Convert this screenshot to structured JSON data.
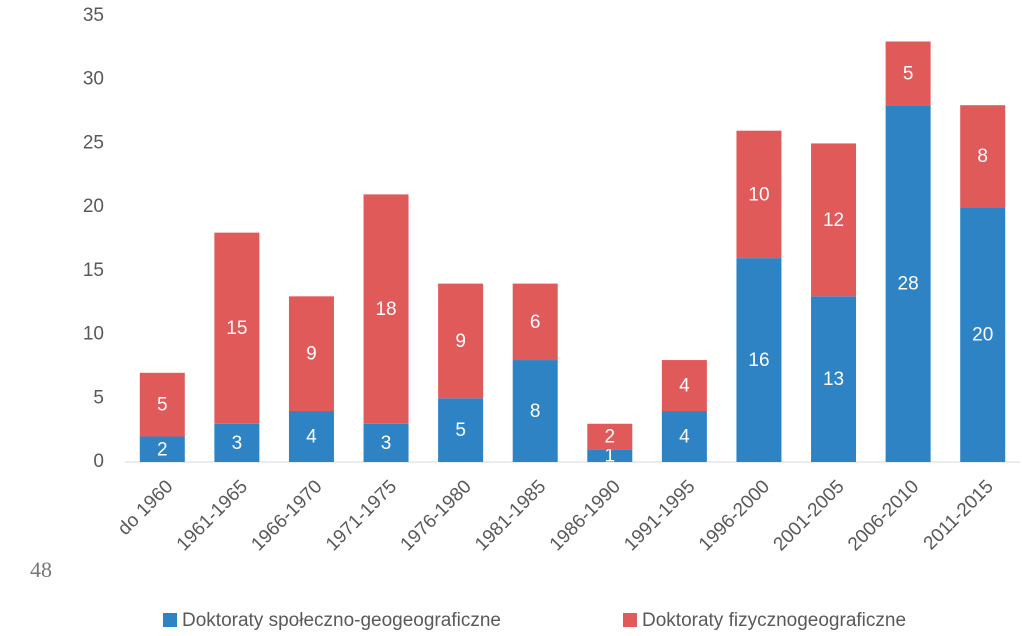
{
  "chart_data": {
    "type": "stacked_bar",
    "categories": [
      "do 1960",
      "1961-1965",
      "1966-1970",
      "1971-1975",
      "1976-1980",
      "1981-1985",
      "1986-1990",
      "1991-1995",
      "1996-2000",
      "2001-2005",
      "2006-2010",
      "2011-2015"
    ],
    "series": [
      {
        "name": "Doktoraty społeczno-geogeograficzne",
        "color": "#2e83c4",
        "values": [
          2,
          3,
          4,
          3,
          5,
          8,
          1,
          4,
          16,
          13,
          28,
          20
        ]
      },
      {
        "name": "Doktoraty fizycznogeograficzne",
        "color": "#e05a5a",
        "values": [
          5,
          15,
          9,
          18,
          9,
          6,
          2,
          4,
          10,
          12,
          5,
          8
        ]
      }
    ],
    "ylim": [
      0,
      35
    ],
    "yticks": [
      0,
      5,
      10,
      15,
      20,
      25,
      30,
      35
    ],
    "grid": false,
    "legend": "bottom"
  },
  "page_number": "48"
}
